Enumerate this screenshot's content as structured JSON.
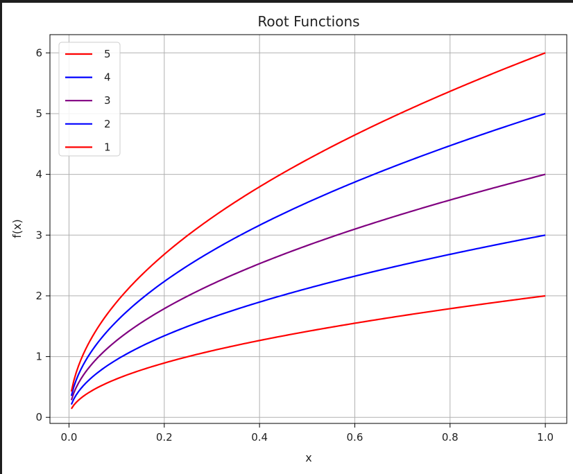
{
  "chart_data": {
    "type": "line",
    "title": "Root Functions",
    "xlabel": "x",
    "ylabel": "f(x)",
    "xlim": [
      -0.04,
      1.045
    ],
    "ylim": [
      -0.1,
      6.3
    ],
    "grid": true,
    "legend_position": "top-left",
    "x_ticks": [
      "0.0",
      "0.2",
      "0.4",
      "0.6",
      "0.8",
      "1.0"
    ],
    "y_ticks": [
      "0",
      "1",
      "2",
      "3",
      "4",
      "5",
      "6"
    ],
    "x_tick_values": [
      0,
      0.2,
      0.4,
      0.6,
      0.8,
      1.0
    ],
    "y_tick_values": [
      0,
      1,
      2,
      3,
      4,
      5,
      6
    ],
    "x_domain": [
      0.005,
      1.0
    ],
    "series": [
      {
        "name": "5",
        "color": "#ff0000",
        "coefficient": 6,
        "value_at_1": 6
      },
      {
        "name": "4",
        "color": "#0000ff",
        "coefficient": 5,
        "value_at_1": 5
      },
      {
        "name": "3",
        "color": "#800080",
        "coefficient": 4,
        "value_at_1": 4
      },
      {
        "name": "2",
        "color": "#0000ff",
        "coefficient": 3,
        "value_at_1": 3
      },
      {
        "name": "1",
        "color": "#ff0000",
        "coefficient": 2,
        "value_at_1": 2
      }
    ],
    "series_colors_plotted_bottom_to_top": [
      "#0000ff",
      "#800080",
      "#0000ff",
      "#ff0000",
      "#ff0000"
    ]
  }
}
